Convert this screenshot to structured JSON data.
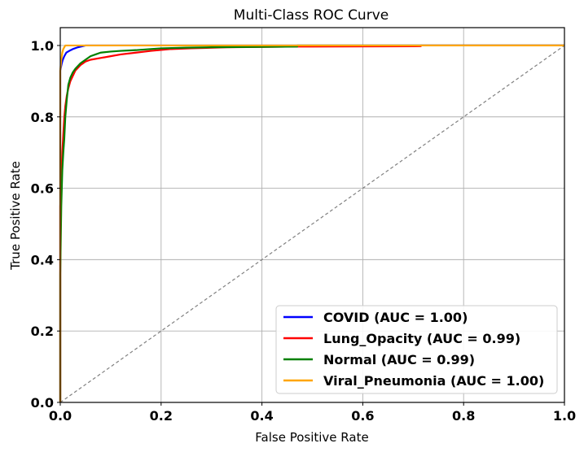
{
  "chart_data": {
    "type": "line",
    "title": "Multi-Class ROC Curve",
    "xlabel": "False Positive Rate",
    "ylabel": "True Positive Rate",
    "xlim": [
      0,
      1
    ],
    "ylim": [
      0,
      1.05
    ],
    "xticks": [
      "0.0",
      "0.2",
      "0.4",
      "0.6",
      "0.8",
      "1.0"
    ],
    "yticks": [
      "0.0",
      "0.2",
      "0.4",
      "0.6",
      "0.8",
      "1.0"
    ],
    "grid": true,
    "legend_position": "lower-right",
    "reference_line": {
      "x": [
        0,
        1
      ],
      "y": [
        0,
        1
      ],
      "color": "#808080",
      "style": "dashed"
    },
    "series": [
      {
        "name": "COVID (AUC = 1.00)",
        "color": "#0000ff",
        "x": [
          0,
          0,
          0.003,
          0.005,
          0.008,
          0.012,
          0.018,
          0.025,
          0.035,
          0.05,
          1.0
        ],
        "y": [
          0,
          0.93,
          0.95,
          0.96,
          0.97,
          0.98,
          0.985,
          0.99,
          0.995,
          1.0,
          1.0
        ]
      },
      {
        "name": "Lung_Opacity (AUC = 0.99)",
        "color": "#ff0000",
        "x": [
          0,
          0,
          0.002,
          0.004,
          0.006,
          0.008,
          0.01,
          0.013,
          0.016,
          0.02,
          0.025,
          0.03,
          0.04,
          0.05,
          0.06,
          0.08,
          0.1,
          0.12,
          0.15,
          0.18,
          0.22,
          0.26,
          0.33,
          0.47,
          0.715,
          0.715,
          1.0
        ],
        "y": [
          0,
          0.55,
          0.62,
          0.7,
          0.75,
          0.8,
          0.83,
          0.86,
          0.88,
          0.9,
          0.915,
          0.93,
          0.945,
          0.955,
          0.96,
          0.965,
          0.97,
          0.975,
          0.98,
          0.985,
          0.99,
          0.992,
          0.995,
          0.997,
          0.998,
          1.0,
          1.0
        ]
      },
      {
        "name": "Normal (AUC = 0.99)",
        "color": "#008000",
        "x": [
          0,
          0,
          0.002,
          0.004,
          0.006,
          0.008,
          0.01,
          0.013,
          0.016,
          0.02,
          0.025,
          0.03,
          0.04,
          0.05,
          0.06,
          0.07,
          0.08,
          0.1,
          0.12,
          0.15,
          0.18,
          0.2,
          0.25,
          0.3,
          0.4,
          0.47,
          0.47,
          1.0
        ],
        "y": [
          0,
          0.36,
          0.55,
          0.65,
          0.7,
          0.74,
          0.8,
          0.85,
          0.89,
          0.91,
          0.925,
          0.935,
          0.95,
          0.96,
          0.97,
          0.975,
          0.98,
          0.983,
          0.985,
          0.987,
          0.99,
          0.992,
          0.994,
          0.995,
          0.996,
          0.997,
          1.0,
          1.0
        ]
      },
      {
        "name": "Viral_Pneumonia (AUC = 1.00)",
        "color": "#ffa500",
        "x": [
          0,
          0,
          0.002,
          0.004,
          0.006,
          0.01,
          1.0
        ],
        "y": [
          0,
          0.93,
          0.96,
          0.98,
          0.99,
          1.0,
          1.0
        ]
      }
    ]
  }
}
